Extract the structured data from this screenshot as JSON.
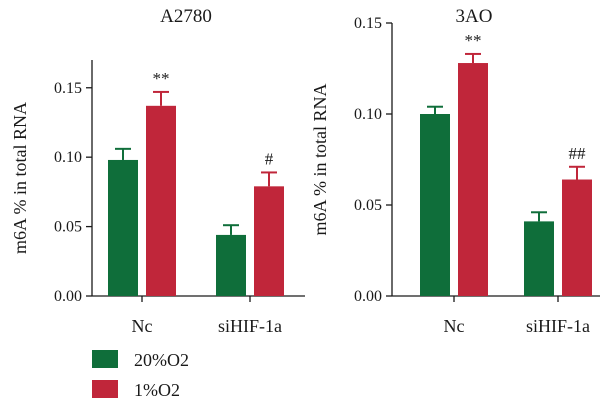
{
  "colors": {
    "o2_20": "#0f6e3a",
    "o2_1": "#c0263a"
  },
  "legend": [
    {
      "name": "20%O2",
      "color": "#0f6e3a"
    },
    {
      "name": "1%O2",
      "color": "#c0263a"
    }
  ],
  "chart_data": [
    {
      "type": "bar",
      "title": "A2780",
      "ylabel": "m6A % in total RNA",
      "ylim": [
        0,
        0.17
      ],
      "yticks": [
        "0.00",
        "0.05",
        "0.10",
        "0.15"
      ],
      "categories": [
        "Nc",
        "siHIF-1a"
      ],
      "series": [
        {
          "name": "20%O2",
          "values": [
            0.098,
            0.044
          ],
          "errors": [
            0.008,
            0.007
          ]
        },
        {
          "name": "1%O2",
          "values": [
            0.137,
            0.079
          ],
          "errors": [
            0.01,
            0.01
          ]
        }
      ],
      "annotations": [
        {
          "category": "Nc",
          "series": "1%O2",
          "text": "**"
        },
        {
          "category": "siHIF-1a",
          "series": "1%O2",
          "text": "#"
        }
      ],
      "grid": false
    },
    {
      "type": "bar",
      "title": "3AO",
      "ylabel": "m6A % in total RNA",
      "ylim": [
        0,
        0.15
      ],
      "yticks": [
        "0.00",
        "0.05",
        "0.10",
        "0.15"
      ],
      "categories": [
        "Nc",
        "siHIF-1a"
      ],
      "series": [
        {
          "name": "20%O2",
          "values": [
            0.1,
            0.041
          ],
          "errors": [
            0.004,
            0.005
          ]
        },
        {
          "name": "1%O2",
          "values": [
            0.128,
            0.064
          ],
          "errors": [
            0.005,
            0.007
          ]
        }
      ],
      "annotations": [
        {
          "category": "Nc",
          "series": "1%O2",
          "text": "**"
        },
        {
          "category": "siHIF-1a",
          "series": "1%O2",
          "text": "##"
        }
      ],
      "grid": false
    }
  ]
}
